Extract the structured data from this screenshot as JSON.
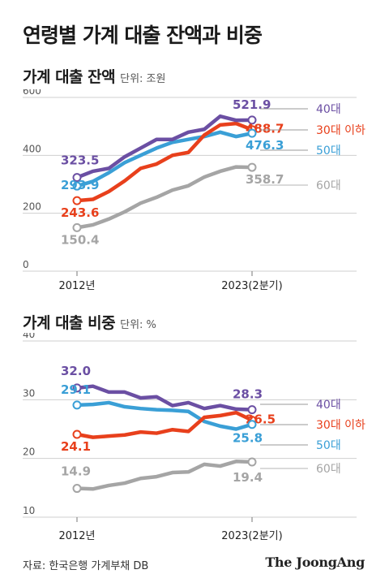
{
  "title": "연령별 가계 대출 잔액과 비중",
  "source": "자료: 한국은행 가계부채 DB",
  "brand": "The JoongAng",
  "colors": {
    "40대": "#6b4fa3",
    "30대 이하": "#e8401c",
    "50대": "#3a9fd6",
    "60대": "#a5a5a5"
  },
  "chart_data": [
    {
      "type": "line",
      "title": "가계 대출 잔액",
      "unit": "단위: 조원",
      "ylim": [
        0,
        600
      ],
      "yticks": [
        "0",
        "200",
        "400",
        "600"
      ],
      "xlabels": [
        "2012년",
        "2023(2분기)"
      ],
      "grid": true,
      "series": [
        {
          "name": "40대",
          "start_label": "323.5",
          "end_label": "521.9",
          "values": [
            323.5,
            345,
            355,
            395,
            425,
            455,
            455,
            480,
            490,
            535,
            521,
            521.9
          ]
        },
        {
          "name": "30대 이하",
          "start_label": "243.6",
          "end_label": "488.7",
          "values": [
            243.6,
            248,
            275,
            312,
            355,
            370,
            400,
            410,
            470,
            505,
            510,
            488.7
          ]
        },
        {
          "name": "50대",
          "start_label": "293.9",
          "end_label": "476.3",
          "values": [
            293.9,
            310,
            340,
            375,
            400,
            425,
            445,
            455,
            465,
            480,
            465,
            476.3
          ]
        },
        {
          "name": "60대",
          "start_label": "150.4",
          "end_label": "358.7",
          "values": [
            150.4,
            160,
            180,
            205,
            235,
            255,
            280,
            295,
            325,
            345,
            360,
            358.7
          ]
        }
      ]
    },
    {
      "type": "line",
      "title": "가계 대출 비중",
      "unit": "단위: %",
      "ylim": [
        10,
        40
      ],
      "yticks": [
        "10",
        "20",
        "30",
        "40"
      ],
      "xlabels": [
        "2012년",
        "2023(2분기)"
      ],
      "grid": true,
      "series": [
        {
          "name": "40대",
          "start_label": "32.0",
          "end_label": "28.3",
          "values": [
            32.0,
            32.3,
            31.3,
            31.3,
            30.3,
            30.5,
            29.0,
            29.5,
            28.5,
            29.0,
            28.4,
            28.3
          ]
        },
        {
          "name": "30대 이하",
          "start_label": "24.1",
          "end_label": "26.5",
          "values": [
            24.1,
            23.6,
            23.8,
            24.0,
            24.5,
            24.3,
            24.9,
            24.6,
            27.0,
            27.3,
            27.8,
            26.5
          ]
        },
        {
          "name": "50대",
          "start_label": "29.1",
          "end_label": "25.8",
          "values": [
            29.1,
            29.2,
            29.5,
            28.8,
            28.5,
            28.3,
            28.2,
            28.0,
            26.3,
            25.5,
            25.0,
            25.8
          ]
        },
        {
          "name": "60대",
          "start_label": "14.9",
          "end_label": "19.4",
          "values": [
            14.9,
            14.8,
            15.4,
            15.8,
            16.6,
            16.9,
            17.6,
            17.7,
            19.0,
            18.7,
            19.5,
            19.4
          ]
        }
      ]
    }
  ]
}
